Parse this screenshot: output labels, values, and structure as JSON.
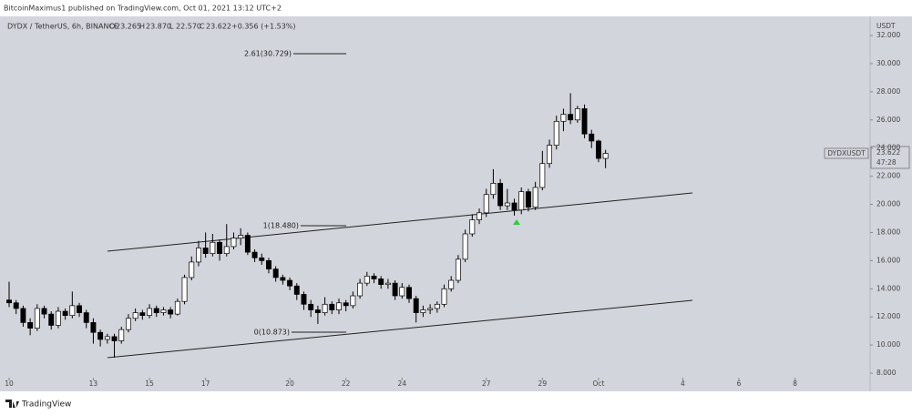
{
  "header": {
    "published": "BitcoinMaximus1 published on TradingView.com, Oct 01, 2021 13:12 UTC+2"
  },
  "footer": {
    "brand": "TradingView"
  },
  "chart_data": {
    "type": "candlestick",
    "symbol": "DYDX / TetherUS, 6h, BINANCE",
    "ohlc_header": [
      {
        "label": "O",
        "value": "23.265"
      },
      {
        "label": "H",
        "value": "23.870"
      },
      {
        "label": "L",
        "value": "22.570"
      },
      {
        "label": "C",
        "value": "23.622"
      }
    ],
    "change": "+0.356 (+1.53%)",
    "currency": "USDT",
    "price_tag": {
      "symbol": "DYDXUSDT",
      "price": "23.622",
      "countdown": "47:28"
    },
    "annotations": [
      "2.61(30.729)",
      "1(18.480)",
      "0(10.873)"
    ],
    "up_color": "#ffffff",
    "down_color": "#000000",
    "open": [
      13.2,
      13.0,
      12.6,
      11.6,
      11.2,
      12.6,
      12.2,
      11.4,
      12.4,
      12.1,
      12.8,
      12.3,
      11.6,
      10.9,
      10.4,
      10.6,
      10.3,
      11.1,
      11.9,
      12.3,
      12.1,
      12.6,
      12.3,
      12.5,
      12.2,
      13.1,
      14.8,
      15.9,
      16.9,
      16.5,
      17.3,
      16.5,
      17.0,
      17.6,
      17.8,
      16.6,
      16.2,
      16.0,
      15.4,
      14.8,
      14.6,
      14.2,
      13.6,
      12.9,
      12.5,
      12.3,
      12.9,
      12.5,
      13.0,
      12.8,
      13.5,
      14.4,
      14.9,
      14.7,
      14.3,
      14.4,
      13.5,
      14.1,
      13.3,
      12.3,
      12.5,
      12.6,
      12.9,
      14.0,
      14.6,
      16.1,
      17.9,
      18.9,
      19.4,
      20.7,
      21.5,
      19.9,
      20.1,
      19.6,
      20.9,
      19.8,
      21.2,
      22.9,
      24.2,
      25.9,
      26.4,
      26.0,
      26.8,
      25.0,
      24.5,
      23.265
    ],
    "high": [
      14.5,
      13.2,
      12.8,
      11.9,
      12.9,
      12.8,
      12.4,
      12.7,
      12.6,
      13.8,
      13.0,
      12.5,
      11.9,
      11.1,
      10.8,
      10.8,
      11.3,
      12.2,
      12.6,
      12.5,
      12.9,
      12.8,
      12.7,
      12.7,
      13.3,
      15.0,
      16.3,
      17.4,
      18.0,
      17.9,
      17.5,
      18.6,
      18.0,
      18.3,
      18.0,
      16.8,
      16.5,
      16.2,
      15.6,
      15.0,
      14.8,
      14.4,
      13.8,
      13.2,
      12.8,
      13.4,
      13.1,
      13.3,
      13.2,
      13.8,
      14.7,
      15.2,
      15.1,
      14.9,
      14.7,
      14.6,
      14.4,
      14.3,
      13.5,
      12.8,
      12.9,
      13.1,
      14.3,
      14.9,
      16.4,
      18.2,
      19.3,
      19.7,
      21.1,
      22.5,
      21.8,
      21.1,
      20.4,
      21.2,
      21.1,
      21.6,
      23.8,
      24.6,
      26.3,
      26.8,
      27.9,
      27.0,
      27.1,
      25.3,
      24.6,
      23.87
    ],
    "low": [
      12.7,
      12.2,
      11.3,
      10.7,
      11.0,
      11.9,
      11.1,
      11.2,
      11.8,
      11.9,
      12.0,
      11.2,
      10.1,
      9.9,
      10.1,
      9.1,
      10.1,
      10.9,
      11.7,
      11.8,
      11.9,
      12.0,
      12.1,
      11.9,
      12.1,
      12.9,
      14.6,
      15.6,
      16.2,
      16.3,
      16.0,
      16.3,
      16.8,
      17.1,
      16.4,
      15.9,
      15.7,
      15.1,
      14.5,
      14.3,
      13.9,
      13.2,
      12.5,
      12.0,
      11.5,
      12.1,
      12.2,
      12.2,
      12.4,
      12.6,
      13.3,
      14.2,
      14.4,
      14.0,
      14.0,
      13.2,
      13.3,
      13.0,
      11.6,
      12.0,
      12.2,
      12.3,
      12.7,
      13.8,
      14.4,
      15.9,
      17.7,
      18.6,
      19.1,
      20.4,
      19.6,
      19.6,
      19.2,
      19.3,
      19.5,
      19.6,
      21.0,
      22.6,
      23.9,
      25.2,
      25.7,
      25.8,
      24.7,
      24.0,
      23.0,
      22.57
    ],
    "close": [
      13.0,
      12.6,
      11.6,
      11.2,
      12.6,
      12.2,
      11.4,
      12.4,
      12.1,
      12.8,
      12.3,
      11.6,
      10.9,
      10.4,
      10.6,
      10.3,
      11.1,
      11.9,
      12.3,
      12.1,
      12.6,
      12.3,
      12.5,
      12.2,
      13.1,
      14.8,
      15.9,
      16.9,
      16.5,
      17.3,
      16.5,
      17.0,
      17.6,
      17.8,
      16.6,
      16.2,
      16.0,
      15.4,
      14.8,
      14.6,
      14.2,
      13.6,
      12.9,
      12.5,
      12.3,
      12.9,
      12.5,
      13.0,
      12.8,
      13.5,
      14.4,
      14.9,
      14.7,
      14.3,
      14.4,
      13.5,
      14.1,
      13.3,
      12.3,
      12.5,
      12.6,
      12.9,
      14.0,
      14.6,
      16.1,
      17.9,
      18.9,
      19.4,
      20.7,
      21.5,
      19.9,
      20.1,
      19.6,
      20.9,
      19.8,
      21.2,
      22.9,
      24.2,
      25.9,
      26.4,
      26.0,
      26.8,
      25.0,
      24.5,
      23.265,
      23.622
    ],
    "xlim": [
      -1.3,
      122.7
    ],
    "xticks": [
      {
        "value": 0,
        "label": "10"
      },
      {
        "value": 12,
        "label": "13"
      },
      {
        "value": 20,
        "label": "15"
      },
      {
        "value": 28,
        "label": "17"
      },
      {
        "value": 40,
        "label": "20"
      },
      {
        "value": 48,
        "label": "22"
      },
      {
        "value": 56,
        "label": "24"
      },
      {
        "value": 68,
        "label": "27"
      },
      {
        "value": 76,
        "label": "29"
      },
      {
        "value": 84,
        "label": "Oct"
      },
      {
        "value": 96,
        "label": "4"
      },
      {
        "value": 104,
        "label": "6"
      },
      {
        "value": 112,
        "label": "8"
      }
    ],
    "ylim": [
      7.68,
      33.36
    ],
    "yticks": [
      {
        "value": 8,
        "label": "8.000"
      },
      {
        "value": 10,
        "label": "10.000"
      },
      {
        "value": 12,
        "label": "12.000"
      },
      {
        "value": 14,
        "label": "14.000"
      },
      {
        "value": 16,
        "label": "16.000"
      },
      {
        "value": 18,
        "label": "18.000"
      },
      {
        "value": 20,
        "label": "20.000"
      },
      {
        "value": 22,
        "label": "22.000"
      },
      {
        "value": 24,
        "label": "24.000"
      },
      {
        "value": 26,
        "label": "26.000"
      },
      {
        "value": 28,
        "label": "28.000"
      },
      {
        "value": 30,
        "label": "30.000"
      },
      {
        "value": 32,
        "label": "32.000"
      }
    ]
  }
}
